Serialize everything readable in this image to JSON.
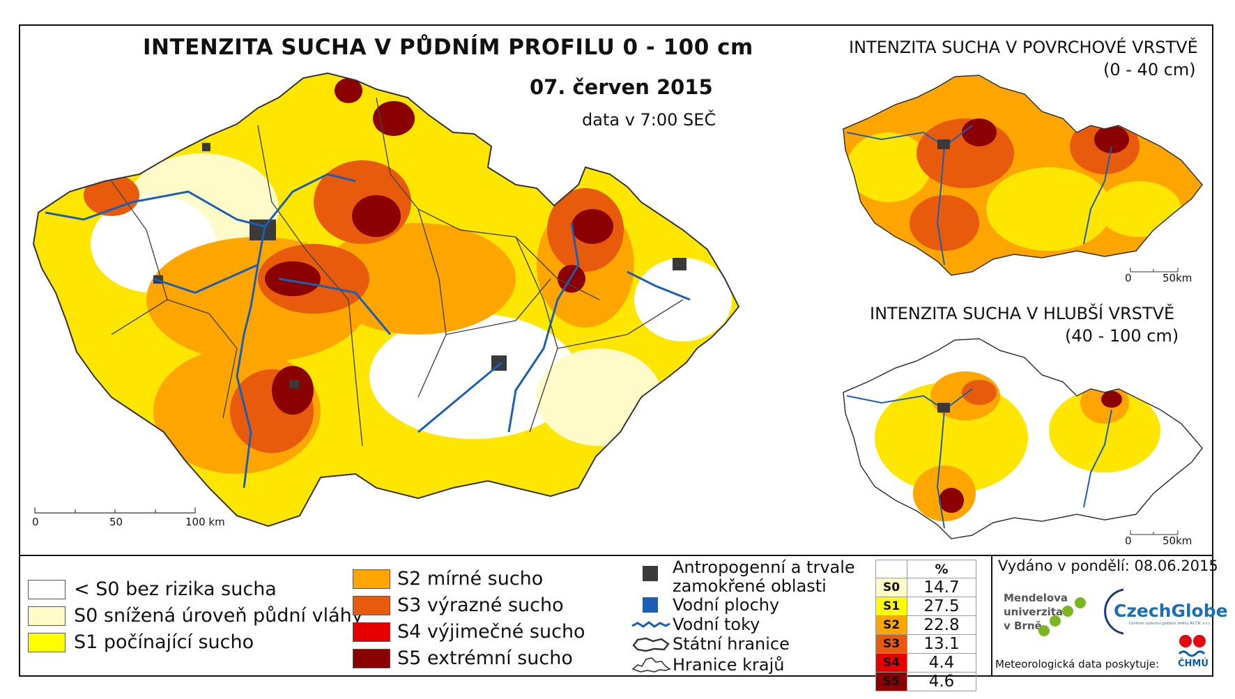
{
  "main_title": "INTENZITA SUCHA V PŮDNÍM PROFILU 0 - 100 cm",
  "date": "07. červen 2015",
  "data_time": "data v 7:00 SEČ",
  "main_scale": {
    "ticks": [
      "0",
      "50",
      "100 km"
    ]
  },
  "inset_top": {
    "title": "INTENZITA SUCHA V POVRCHOVÉ VRSTVĚ",
    "depth": "(0 - 40 cm)",
    "scale": [
      "0",
      "50km"
    ]
  },
  "inset_bottom": {
    "title": "INTENZITA SUCHA V HLUBŠÍ VRSTVĚ",
    "depth": "(40 - 100 cm)",
    "scale": [
      "0",
      "50km"
    ]
  },
  "legend_classes": [
    {
      "label": "< S0 bez rizika sucha",
      "color": "#ffffff"
    },
    {
      "label": "S0 snížená úroveň půdní vláhy",
      "color": "#fffbc8"
    },
    {
      "label": "S1 počínající sucho",
      "color": "#ffff00"
    },
    {
      "label": "S2 mírné sucho",
      "color": "#ffa500"
    },
    {
      "label": "S3 výrazné sucho",
      "color": "#e85a0c"
    },
    {
      "label": "S4 výjimečné sucho",
      "color": "#e60000"
    },
    {
      "label": "S5 extrémní sucho",
      "color": "#8b0000"
    }
  ],
  "legend_features": {
    "anthropogenic": "Antropogenní a trvale zamokřené oblasti",
    "anthropogenic_l1": "Antropogenní a trvale",
    "anthropogenic_l2": "zamokřené oblasti",
    "water_areas": "Vodní plochy",
    "rivers": "Vodní toky",
    "state_border": "Státní hranice",
    "region_borders": "Hranice krajů"
  },
  "percent_table": {
    "header": "%",
    "rows": [
      {
        "code": "S0",
        "value": "14.7",
        "color": "#fffbc8"
      },
      {
        "code": "S1",
        "value": "27.5",
        "color": "#ffff00"
      },
      {
        "code": "S2",
        "value": "22.8",
        "color": "#ffa500"
      },
      {
        "code": "S3",
        "value": "13.1",
        "color": "#e85a0c"
      },
      {
        "code": "S4",
        "value": "4.4",
        "color": "#e60000"
      },
      {
        "code": "S5",
        "value": "4.6",
        "color": "#8b0000"
      }
    ]
  },
  "issued": "Vydáno v pondělí: 08.06.2015",
  "mendel_l1": "Mendelova",
  "mendel_l2": "univerzita",
  "mendel_l3": "v Brně",
  "czechglobe": "CzechGlobe",
  "czechglobe_sub": "Centrum výzkumu globální změny AV ČR, v.v.i.",
  "chmu": "ČHMÚ",
  "credit": "Meteorologická data poskytuje:"
}
